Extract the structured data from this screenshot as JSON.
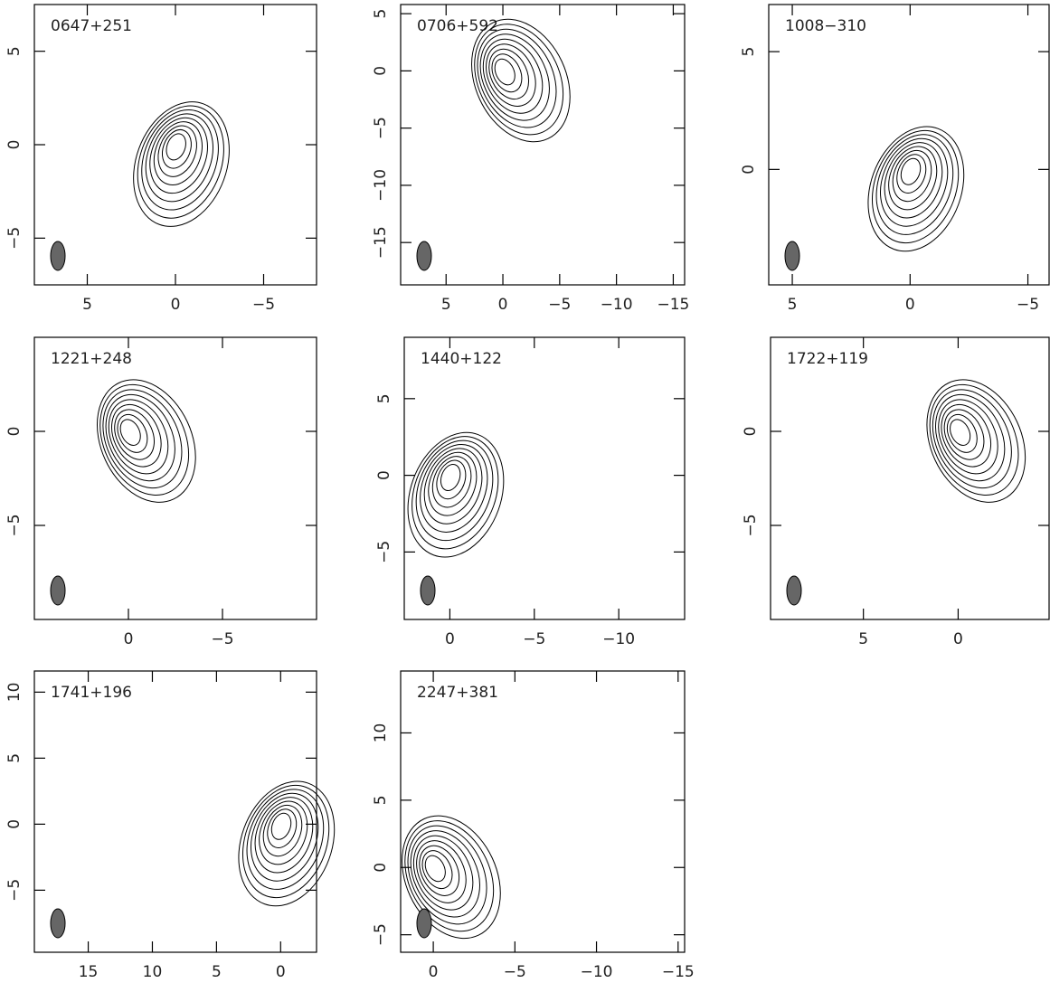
{
  "chart_data": [
    {
      "type": "contour",
      "title": "0647+251",
      "xlim": [
        8,
        -8
      ],
      "ylim": [
        -7.5,
        7.5
      ],
      "xticks": [
        5,
        0,
        {
          "value": -5,
          "label": "−5"
        }
      ],
      "yticks": [
        {
          "value": -5,
          "label": "−5"
        },
        0,
        5
      ]
    },
    {
      "type": "contour",
      "title": "0706+592",
      "xlim": [
        9,
        -16
      ],
      "ylim": [
        -18.7,
        5.8
      ],
      "xticks": [
        5,
        0,
        {
          "value": -5,
          "label": "−5"
        },
        {
          "value": -10,
          "label": "−10"
        },
        {
          "value": -15,
          "label": "−15"
        }
      ],
      "yticks": [
        {
          "value": -15,
          "label": "−15"
        },
        {
          "value": -10,
          "label": "−10"
        },
        {
          "value": -5,
          "label": "−5"
        },
        0,
        5
      ]
    },
    {
      "type": "contour",
      "title": "1008−310",
      "xlim": [
        6,
        -5.9
      ],
      "ylim": [
        -4.9,
        7
      ],
      "xticks": [
        5,
        0,
        {
          "value": -5,
          "label": "−5"
        }
      ],
      "yticks": [
        0,
        5
      ]
    },
    {
      "type": "contour",
      "title": "1221+248",
      "xlim": [
        5,
        -10
      ],
      "ylim": [
        -10,
        5
      ],
      "xticks": [
        0,
        {
          "value": -5,
          "label": "−5"
        }
      ],
      "yticks": [
        {
          "value": -5,
          "label": "−5"
        },
        0
      ]
    },
    {
      "type": "contour",
      "title": "1440+122",
      "xlim": [
        2.7,
        -13.9
      ],
      "ylim": [
        -9.4,
        9
      ],
      "xticks": [
        0,
        {
          "value": -5,
          "label": "−5"
        },
        {
          "value": -10,
          "label": "−10"
        }
      ],
      "yticks": [
        {
          "value": -5,
          "label": "−5"
        },
        0,
        5
      ]
    },
    {
      "type": "contour",
      "title": "1722+119",
      "xlim": [
        9.9,
        -4.8
      ],
      "ylim": [
        -10,
        5
      ],
      "xticks": [
        5,
        0
      ],
      "yticks": [
        {
          "value": -5,
          "label": "−5"
        },
        0
      ]
    },
    {
      "type": "contour",
      "title": "1741+196",
      "xlim": [
        19.2,
        -2.8
      ],
      "ylim": [
        -9.7,
        11.6
      ],
      "xticks": [
        15,
        10,
        5,
        0
      ],
      "yticks": [
        {
          "value": -5,
          "label": "−5"
        },
        0,
        5,
        10
      ]
    },
    {
      "type": "contour",
      "title": "2247+381",
      "xlim": [
        2,
        -15.4
      ],
      "ylim": [
        -6.3,
        14.6
      ],
      "xticks": [
        0,
        {
          "value": -5,
          "label": "−5"
        },
        {
          "value": -10,
          "label": "−10"
        },
        {
          "value": -15,
          "label": "−15"
        }
      ],
      "yticks": [
        {
          "value": -5,
          "label": "−5"
        },
        0,
        5,
        10
      ]
    }
  ]
}
